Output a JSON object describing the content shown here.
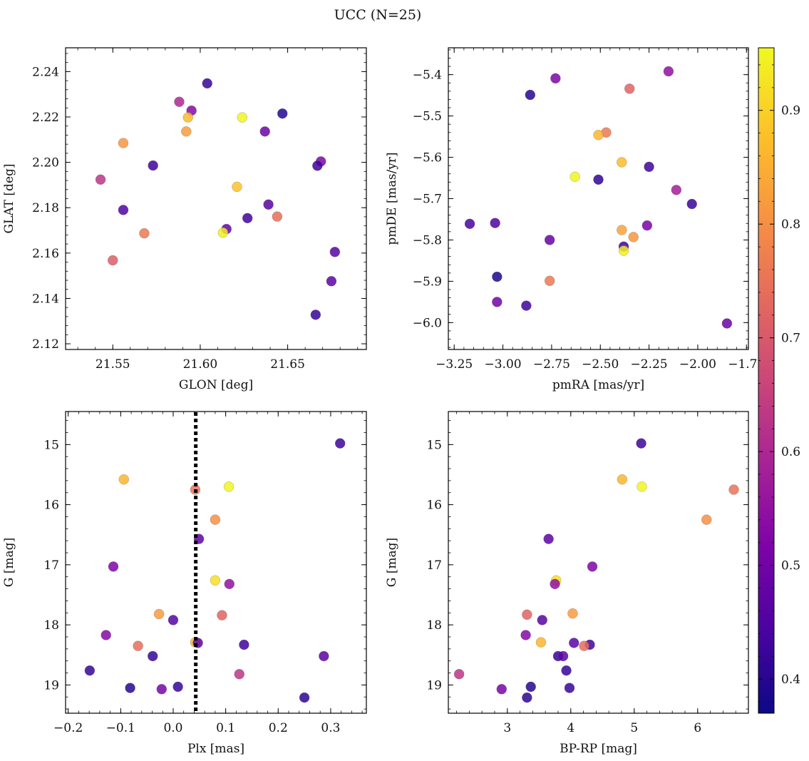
{
  "figure": {
    "title": "UCC (N=25)"
  },
  "colorbar": {
    "colormap": "plasma",
    "range": [
      0.37,
      0.955
    ],
    "ticks": [
      0.4,
      0.5,
      0.6,
      0.7,
      0.8,
      0.9
    ],
    "tick_labels": [
      "0.4",
      "0.5",
      "0.6",
      "0.7",
      "0.8",
      "0.9"
    ],
    "label": ""
  },
  "chart_data": [
    {
      "type": "scatter",
      "xlabel": "GLON [deg]",
      "ylabel": "GLAT [deg]",
      "xlim": [
        21.523,
        21.695
      ],
      "ylim": [
        2.1175,
        2.2505
      ],
      "invert_y": false,
      "xticks": [
        21.55,
        21.6,
        21.65
      ],
      "xtick_labels": [
        "21.55",
        "21.60",
        "21.65"
      ],
      "yticks": [
        2.12,
        2.14,
        2.16,
        2.18,
        2.2,
        2.22,
        2.24
      ],
      "ytick_labels": [
        "2.12",
        "2.14",
        "2.16",
        "2.18",
        "2.20",
        "2.22",
        "2.24"
      ],
      "grid": false,
      "points": [
        {
          "x": 21.604,
          "y": 2.2348,
          "c": 0.42
        },
        {
          "x": 21.588,
          "y": 2.2267,
          "c": 0.6
        },
        {
          "x": 21.595,
          "y": 2.2228,
          "c": 0.53
        },
        {
          "x": 21.593,
          "y": 2.2198,
          "c": 0.87
        },
        {
          "x": 21.624,
          "y": 2.2198,
          "c": 0.95
        },
        {
          "x": 21.647,
          "y": 2.2215,
          "c": 0.4
        },
        {
          "x": 21.592,
          "y": 2.2136,
          "c": 0.82
        },
        {
          "x": 21.637,
          "y": 2.2136,
          "c": 0.49
        },
        {
          "x": 21.556,
          "y": 2.2085,
          "c": 0.81
        },
        {
          "x": 21.669,
          "y": 2.2004,
          "c": 0.52
        },
        {
          "x": 21.667,
          "y": 2.1985,
          "c": 0.43
        },
        {
          "x": 21.573,
          "y": 2.1986,
          "c": 0.43
        },
        {
          "x": 21.543,
          "y": 2.1924,
          "c": 0.63
        },
        {
          "x": 21.621,
          "y": 2.1892,
          "c": 0.88
        },
        {
          "x": 21.639,
          "y": 2.1814,
          "c": 0.46
        },
        {
          "x": 21.556,
          "y": 2.179,
          "c": 0.45
        },
        {
          "x": 21.644,
          "y": 2.1761,
          "c": 0.74
        },
        {
          "x": 21.627,
          "y": 2.1754,
          "c": 0.43
        },
        {
          "x": 21.615,
          "y": 2.1706,
          "c": 0.48
        },
        {
          "x": 21.613,
          "y": 2.169,
          "c": 0.94
        },
        {
          "x": 21.568,
          "y": 2.1687,
          "c": 0.76
        },
        {
          "x": 21.677,
          "y": 2.1605,
          "c": 0.46
        },
        {
          "x": 21.55,
          "y": 2.1568,
          "c": 0.71
        },
        {
          "x": 21.675,
          "y": 2.1476,
          "c": 0.47
        },
        {
          "x": 21.666,
          "y": 2.1328,
          "c": 0.42
        }
      ]
    },
    {
      "type": "scatter",
      "xlabel": "pmRA [mas/yr]",
      "ylabel": "pmDE [mas/yr]",
      "xlim": [
        -3.28,
        -1.74
      ],
      "ylim": [
        -6.065,
        -5.335
      ],
      "invert_y": false,
      "xticks": [
        -3.25,
        -3.0,
        -2.75,
        -2.5,
        -2.25,
        -2.0,
        -1.75
      ],
      "xtick_labels": [
        "−3.25",
        "−3.00",
        "−2.75",
        "−2.50",
        "−2.25",
        "−2.00",
        "−1.75"
      ],
      "yticks": [
        -6.0,
        -5.9,
        -5.8,
        -5.7,
        -5.6,
        -5.5,
        -5.4
      ],
      "ytick_labels": [
        "−6.0",
        "−5.9",
        "−5.8",
        "−5.7",
        "−5.6",
        "−5.5",
        "−5.4"
      ],
      "grid": false,
      "points": [
        {
          "x": -2.15,
          "y": -5.392,
          "c": 0.55
        },
        {
          "x": -2.73,
          "y": -5.409,
          "c": 0.52
        },
        {
          "x": -2.35,
          "y": -5.434,
          "c": 0.72
        },
        {
          "x": -2.86,
          "y": -5.449,
          "c": 0.4
        },
        {
          "x": -2.47,
          "y": -5.54,
          "c": 0.76
        },
        {
          "x": -2.51,
          "y": -5.546,
          "c": 0.86
        },
        {
          "x": -2.39,
          "y": -5.612,
          "c": 0.87
        },
        {
          "x": -2.25,
          "y": -5.623,
          "c": 0.43
        },
        {
          "x": -2.63,
          "y": -5.647,
          "c": 0.95
        },
        {
          "x": -2.51,
          "y": -5.654,
          "c": 0.41
        },
        {
          "x": -2.11,
          "y": -5.679,
          "c": 0.58
        },
        {
          "x": -2.03,
          "y": -5.713,
          "c": 0.42
        },
        {
          "x": -3.17,
          "y": -5.761,
          "c": 0.44
        },
        {
          "x": -3.04,
          "y": -5.759,
          "c": 0.45
        },
        {
          "x": -2.26,
          "y": -5.765,
          "c": 0.51
        },
        {
          "x": -2.39,
          "y": -5.776,
          "c": 0.83
        },
        {
          "x": -2.33,
          "y": -5.793,
          "c": 0.81
        },
        {
          "x": -2.76,
          "y": -5.8,
          "c": 0.48
        },
        {
          "x": -2.38,
          "y": -5.816,
          "c": 0.43
        },
        {
          "x": -2.38,
          "y": -5.826,
          "c": 0.94
        },
        {
          "x": -3.03,
          "y": -5.889,
          "c": 0.39
        },
        {
          "x": -2.76,
          "y": -5.899,
          "c": 0.76
        },
        {
          "x": -3.03,
          "y": -5.95,
          "c": 0.5
        },
        {
          "x": -2.88,
          "y": -5.959,
          "c": 0.43
        },
        {
          "x": -1.85,
          "y": -6.002,
          "c": 0.49
        }
      ]
    },
    {
      "type": "scatter",
      "xlabel": "Plx [mas]",
      "ylabel": "G [mag]",
      "xlim": [
        -0.205,
        0.368
      ],
      "ylim": [
        19.47,
        14.45
      ],
      "invert_y": true,
      "xticks": [
        -0.2,
        -0.1,
        0.0,
        0.1,
        0.2,
        0.3
      ],
      "xtick_labels": [
        "−0.2",
        "−0.1",
        "0.0",
        "0.1",
        "0.2",
        "0.3"
      ],
      "yticks": [
        15,
        16,
        17,
        18,
        19
      ],
      "ytick_labels": [
        "15",
        "16",
        "17",
        "18",
        "19"
      ],
      "grid": false,
      "vline": {
        "x": 0.043,
        "style": "dotted",
        "color": "#000000"
      },
      "points": [
        {
          "x": 0.318,
          "y": 14.98,
          "c": 0.43
        },
        {
          "x": -0.094,
          "y": 15.58,
          "c": 0.86
        },
        {
          "x": 0.106,
          "y": 15.7,
          "c": 0.95
        },
        {
          "x": 0.042,
          "y": 15.75,
          "c": 0.75
        },
        {
          "x": 0.08,
          "y": 16.25,
          "c": 0.8
        },
        {
          "x": 0.049,
          "y": 16.57,
          "c": 0.47
        },
        {
          "x": -0.114,
          "y": 17.03,
          "c": 0.52
        },
        {
          "x": 0.08,
          "y": 17.26,
          "c": 0.92
        },
        {
          "x": 0.107,
          "y": 17.32,
          "c": 0.55
        },
        {
          "x": -0.027,
          "y": 17.82,
          "c": 0.82
        },
        {
          "x": 0.093,
          "y": 17.84,
          "c": 0.72
        },
        {
          "x": 0.0,
          "y": 17.92,
          "c": 0.46
        },
        {
          "x": -0.128,
          "y": 18.17,
          "c": 0.53
        },
        {
          "x": 0.042,
          "y": 18.29,
          "c": 0.86
        },
        {
          "x": 0.047,
          "y": 18.3,
          "c": 0.47
        },
        {
          "x": 0.135,
          "y": 18.33,
          "c": 0.43
        },
        {
          "x": -0.067,
          "y": 18.35,
          "c": 0.74
        },
        {
          "x": -0.039,
          "y": 18.52,
          "c": 0.42
        },
        {
          "x": 0.287,
          "y": 18.52,
          "c": 0.47
        },
        {
          "x": -0.159,
          "y": 18.76,
          "c": 0.42
        },
        {
          "x": 0.126,
          "y": 18.82,
          "c": 0.63
        },
        {
          "x": -0.082,
          "y": 19.05,
          "c": 0.4
        },
        {
          "x": 0.009,
          "y": 19.03,
          "c": 0.42
        },
        {
          "x": -0.022,
          "y": 19.07,
          "c": 0.51
        },
        {
          "x": 0.25,
          "y": 19.21,
          "c": 0.41
        }
      ]
    },
    {
      "type": "scatter",
      "xlabel": "BP-RP [mag]",
      "ylabel": "G [mag]",
      "xlim": [
        2.07,
        6.8
      ],
      "ylim": [
        19.47,
        14.45
      ],
      "invert_y": true,
      "xticks": [
        3,
        4,
        5,
        6
      ],
      "xtick_labels": [
        "3",
        "4",
        "5",
        "6"
      ],
      "yticks": [
        15,
        16,
        17,
        18,
        19
      ],
      "ytick_labels": [
        "15",
        "16",
        "17",
        "18",
        "19"
      ],
      "grid": false,
      "points": [
        {
          "x": 5.11,
          "y": 14.98,
          "c": 0.43
        },
        {
          "x": 4.81,
          "y": 15.58,
          "c": 0.86
        },
        {
          "x": 5.12,
          "y": 15.7,
          "c": 0.95
        },
        {
          "x": 6.57,
          "y": 15.75,
          "c": 0.75
        },
        {
          "x": 6.14,
          "y": 16.25,
          "c": 0.8
        },
        {
          "x": 3.65,
          "y": 16.57,
          "c": 0.47
        },
        {
          "x": 4.34,
          "y": 17.03,
          "c": 0.52
        },
        {
          "x": 3.77,
          "y": 17.26,
          "c": 0.92
        },
        {
          "x": 3.75,
          "y": 17.32,
          "c": 0.55
        },
        {
          "x": 3.31,
          "y": 17.83,
          "c": 0.72
        },
        {
          "x": 4.03,
          "y": 17.81,
          "c": 0.82
        },
        {
          "x": 3.55,
          "y": 17.92,
          "c": 0.46
        },
        {
          "x": 3.29,
          "y": 18.17,
          "c": 0.53
        },
        {
          "x": 3.53,
          "y": 18.29,
          "c": 0.86
        },
        {
          "x": 4.05,
          "y": 18.3,
          "c": 0.47
        },
        {
          "x": 4.3,
          "y": 18.33,
          "c": 0.43
        },
        {
          "x": 4.21,
          "y": 18.35,
          "c": 0.74
        },
        {
          "x": 3.8,
          "y": 18.52,
          "c": 0.42
        },
        {
          "x": 3.88,
          "y": 18.52,
          "c": 0.47
        },
        {
          "x": 3.93,
          "y": 18.76,
          "c": 0.42
        },
        {
          "x": 2.24,
          "y": 18.82,
          "c": 0.63
        },
        {
          "x": 3.37,
          "y": 19.03,
          "c": 0.4
        },
        {
          "x": 3.98,
          "y": 19.05,
          "c": 0.42
        },
        {
          "x": 2.91,
          "y": 19.07,
          "c": 0.51
        },
        {
          "x": 3.31,
          "y": 19.21,
          "c": 0.41
        }
      ]
    }
  ]
}
